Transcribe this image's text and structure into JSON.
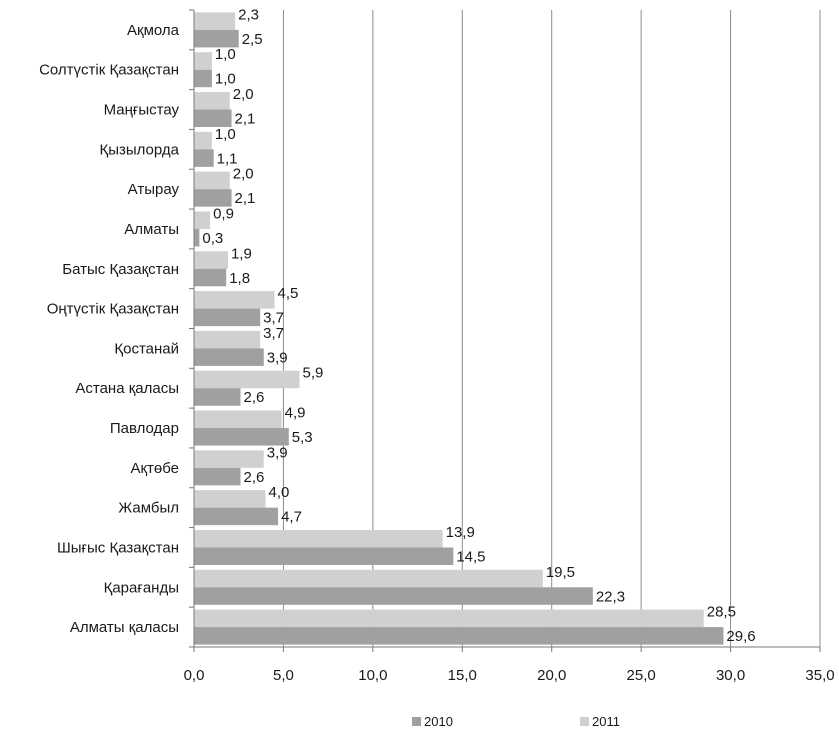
{
  "chart_data": {
    "type": "bar",
    "orientation": "horizontal",
    "categories": [
      "Ақмола",
      "Солтүстік Қазақстан",
      "Маңғыстау",
      "Қызылорда",
      "Атырау",
      "Алматы",
      "Батыс Қазақстан",
      "Оңтүстік Қазақстан",
      "Қостанай",
      "Астана қаласы",
      "Павлодар",
      "Ақтөбе",
      "Жамбыл",
      "Шығыс Қазақстан",
      "Қарағанды",
      "Алматы қаласы"
    ],
    "series": [
      {
        "name": "2010",
        "color": "#a0a0a0",
        "values": [
          2.5,
          1.0,
          2.1,
          1.1,
          2.1,
          0.3,
          1.8,
          3.7,
          3.9,
          2.6,
          5.3,
          2.6,
          4.7,
          14.5,
          22.3,
          29.6
        ],
        "labels": [
          "2,5",
          "1,0",
          "2,1",
          "1,1",
          "2,1",
          "0,3",
          "1,8",
          "3,7",
          "3,9",
          "2,6",
          "5,3",
          "2,6",
          "4,7",
          "14,5",
          "22,3",
          "29,6"
        ]
      },
      {
        "name": "2011",
        "color": "#d0d0d0",
        "values": [
          2.3,
          1.0,
          2.0,
          1.0,
          2.0,
          0.9,
          1.9,
          4.5,
          3.7,
          5.9,
          4.9,
          3.9,
          4.0,
          13.9,
          19.5,
          28.5
        ],
        "labels": [
          "2,3",
          "1,0",
          "2,0",
          "1,0",
          "2,0",
          "0,9",
          "1,9",
          "4,5",
          "3,7",
          "5,9",
          "4,9",
          "3,9",
          "4,0",
          "13,9",
          "19,5",
          "28,5"
        ]
      }
    ],
    "xlim": [
      0,
      35
    ],
    "x_ticks": [
      0,
      5,
      10,
      15,
      20,
      25,
      30,
      35
    ],
    "x_tick_labels": [
      "0,0",
      "5,0",
      "10,0",
      "15,0",
      "20,0",
      "25,0",
      "30,0",
      "35,0"
    ],
    "grid": "vertical",
    "legend_position": "bottom",
    "title": "",
    "xlabel": "",
    "ylabel": ""
  }
}
